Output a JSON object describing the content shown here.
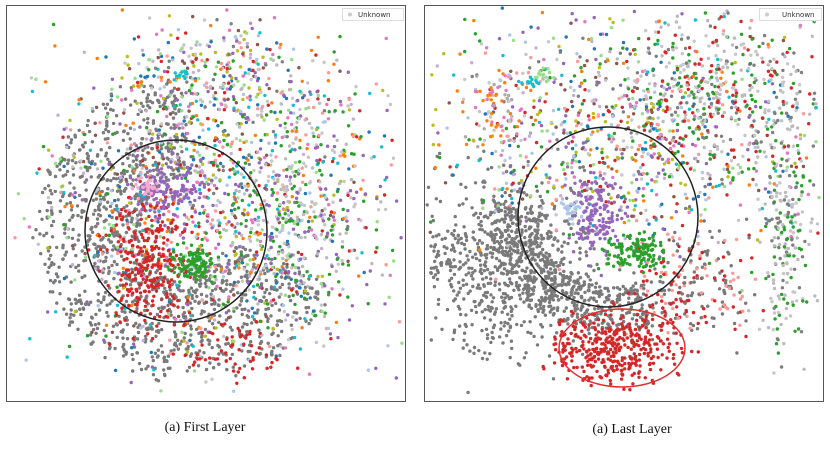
{
  "panels": [
    {
      "legend": "Unknown",
      "caption": "(a) First Layer"
    },
    {
      "legend": "Unknown",
      "caption": "(a) Last Layer"
    }
  ]
}
